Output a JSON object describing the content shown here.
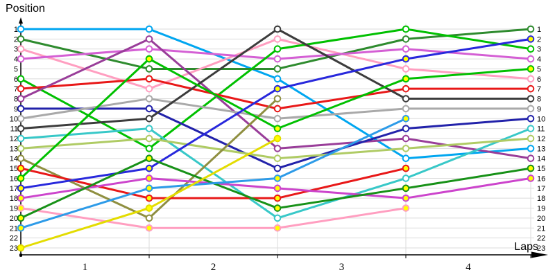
{
  "chart_data": {
    "type": "line",
    "title": "",
    "ylabel": "Position",
    "xlabel": "Laps",
    "grid": true,
    "y_axis_inverted": true,
    "y_range": [
      1,
      23
    ],
    "y_ticks": [
      1,
      2,
      3,
      4,
      5,
      6,
      7,
      8,
      9,
      10,
      11,
      12,
      13,
      14,
      15,
      16,
      17,
      18,
      19,
      20,
      21,
      22,
      23
    ],
    "x_stations": [
      "grid",
      "lap1",
      "lap2",
      "lap3",
      "lap4"
    ],
    "x_tick_labels": [
      "1",
      "2",
      "3",
      "4"
    ],
    "marker_fills": {
      "white": "#FFFFFF",
      "yellow": "#FFFF00"
    },
    "series": [
      {
        "name": "sky-blue",
        "color": "#00A6F0",
        "marker_fill": "white",
        "positions": [
          1,
          1,
          6,
          14,
          13
        ]
      },
      {
        "name": "forest-green",
        "color": "#2E8B2E",
        "marker_fill": "white",
        "positions": [
          2,
          5,
          5,
          2,
          1
        ]
      },
      {
        "name": "light-pink",
        "color": "#FF9EC0",
        "marker_fill": "white",
        "positions": [
          3,
          7,
          2,
          5,
          6
        ]
      },
      {
        "name": "violet",
        "color": "#D45FD4",
        "marker_fill": "white",
        "positions": [
          4,
          3,
          4,
          3,
          4
        ]
      },
      {
        "name": "bright-green",
        "color": "#00C000",
        "marker_fill": "white",
        "positions": [
          6,
          13,
          3,
          1,
          3
        ]
      },
      {
        "name": "red",
        "color": "#E81818",
        "marker_fill": "white",
        "positions": [
          7,
          6,
          9,
          7,
          7
        ]
      },
      {
        "name": "purple",
        "color": "#993D99",
        "marker_fill": "white",
        "positions": [
          8,
          2,
          13,
          12,
          14
        ]
      },
      {
        "name": "navy-blue",
        "color": "#2222AA",
        "marker_fill": "white",
        "positions": [
          9,
          9,
          15,
          11,
          10
        ]
      },
      {
        "name": "silver",
        "color": "#A9A9A9",
        "marker_fill": "white",
        "positions": [
          10,
          8,
          10,
          9,
          9
        ]
      },
      {
        "name": "dark-gray",
        "color": "#3C3C3C",
        "marker_fill": "white",
        "positions": [
          11,
          10,
          1,
          8,
          8
        ]
      },
      {
        "name": "turquoise",
        "color": "#38C8C8",
        "marker_fill": "white",
        "positions": [
          12,
          11,
          20,
          16,
          11
        ]
      },
      {
        "name": "yellow-green",
        "color": "#AFCB64",
        "marker_fill": "white",
        "positions": [
          13,
          12,
          14,
          13,
          12
        ]
      },
      {
        "name": "olive",
        "color": "#8F8F40",
        "marker_fill": "white",
        "positions": [
          14,
          20,
          8,
          null,
          null
        ]
      },
      {
        "name": "red-2",
        "color": "#E81818",
        "marker_fill": "yellow",
        "positions": [
          15,
          18,
          18,
          15,
          null
        ]
      },
      {
        "name": "bright-green-2",
        "color": "#00C000",
        "marker_fill": "yellow",
        "positions": [
          16,
          4,
          11,
          6,
          5
        ]
      },
      {
        "name": "blue",
        "color": "#2828DC",
        "marker_fill": "yellow",
        "positions": [
          17,
          15,
          7,
          4,
          2
        ]
      },
      {
        "name": "magenta",
        "color": "#CC44CC",
        "marker_fill": "yellow",
        "positions": [
          18,
          16,
          17,
          18,
          16
        ]
      },
      {
        "name": "light-pink-2",
        "color": "#FF9EC0",
        "marker_fill": "yellow",
        "positions": [
          19,
          21,
          21,
          19,
          null
        ]
      },
      {
        "name": "dark-green",
        "color": "#179117",
        "marker_fill": "yellow",
        "positions": [
          20,
          14,
          19,
          17,
          15
        ]
      },
      {
        "name": "dodger-blue",
        "color": "#2D9BE8",
        "marker_fill": "yellow",
        "positions": [
          21,
          17,
          16,
          10,
          null
        ]
      },
      {
        "name": "yellow",
        "color": "#E3DC00",
        "marker_fill": "yellow",
        "positions": [
          23,
          19,
          12,
          null,
          null
        ]
      }
    ]
  },
  "colors": {
    "axis": "#000000",
    "grid": "#DBDBDB",
    "background": "#FFFFFF",
    "label_text": "#000000"
  }
}
